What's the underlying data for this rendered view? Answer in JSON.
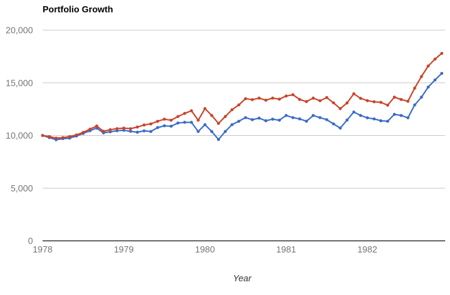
{
  "chart": {
    "title": "Portfolio Growth",
    "x_axis_title": "Year"
  },
  "colors": {
    "series_red": "#c9442a",
    "series_blue": "#3b6bc5",
    "gridline": "#cccccc",
    "baseline": "#424242",
    "tick_label": "#757575",
    "axis_title": "#333333",
    "background": "#ffffff"
  },
  "chart_data": {
    "type": "line",
    "title": "Portfolio Growth",
    "xlabel": "Year",
    "ylabel": "",
    "legend": "none",
    "grid": "horizontal",
    "ylim": [
      0,
      20000
    ],
    "y_ticks": [
      0,
      5000,
      10000,
      15000,
      20000
    ],
    "y_tick_labels": [
      "0",
      "5,000",
      "10,000",
      "15,000",
      "20,000"
    ],
    "x_tick_labels": [
      "1978",
      "1979",
      "1980",
      "1981",
      "1982"
    ],
    "x_unit": "month",
    "x_range": "Jan 1978 - Dec 1982",
    "markers": true,
    "series": [
      {
        "name": "blue-series",
        "color": "#3b6bc5",
        "values": [
          10000,
          9800,
          9600,
          9700,
          9750,
          9950,
          10200,
          10450,
          10700,
          10250,
          10350,
          10450,
          10500,
          10400,
          10310,
          10440,
          10380,
          10750,
          10920,
          10880,
          11185,
          11250,
          11250,
          10380,
          11030,
          10380,
          9620,
          10380,
          11030,
          11350,
          11700,
          11500,
          11650,
          11400,
          11550,
          11450,
          11900,
          11700,
          11575,
          11355,
          11900,
          11700,
          11500,
          11100,
          10700,
          11465,
          12230,
          11900,
          11680,
          11575,
          11400,
          11355,
          12010,
          11900,
          11680,
          12900,
          13640,
          14600,
          15270,
          15900
        ]
      },
      {
        "name": "red-series",
        "color": "#c9442a",
        "values": [
          10000,
          9900,
          9750,
          9800,
          9900,
          10050,
          10300,
          10600,
          10900,
          10400,
          10550,
          10650,
          10700,
          10650,
          10800,
          11000,
          11100,
          11350,
          11550,
          11450,
          11800,
          12100,
          12350,
          11450,
          12550,
          11900,
          11150,
          11800,
          12450,
          12900,
          13500,
          13400,
          13550,
          13350,
          13550,
          13450,
          13750,
          13870,
          13420,
          13220,
          13550,
          13300,
          13600,
          13100,
          12550,
          13090,
          13960,
          13530,
          13310,
          13200,
          13150,
          12880,
          13640,
          13420,
          13250,
          14500,
          15600,
          16600,
          17250,
          17800
        ]
      }
    ]
  }
}
